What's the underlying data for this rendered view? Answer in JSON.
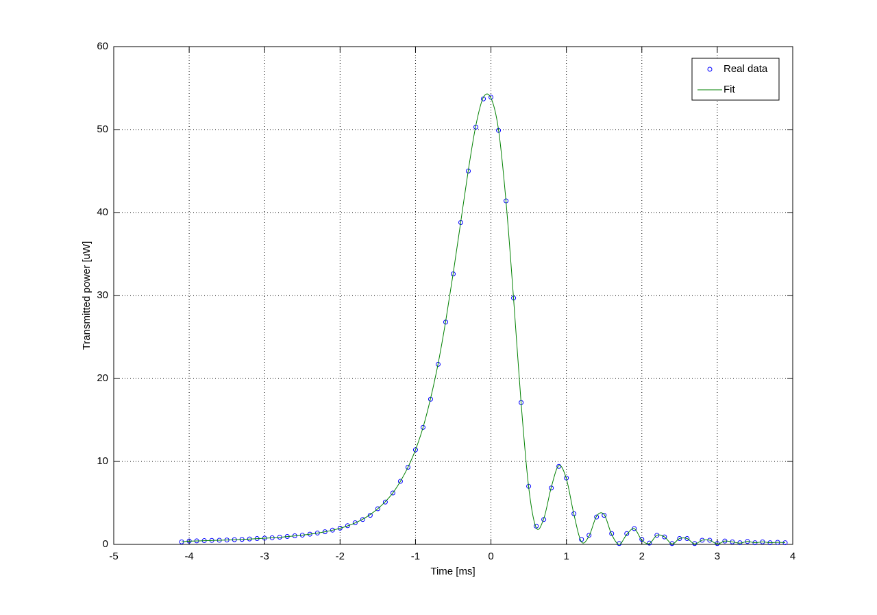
{
  "chart_data": {
    "type": "line",
    "xlabel": "Time [ms]",
    "ylabel": "Transmitted power [uW]",
    "x": [
      -4.1,
      -4.0,
      -3.9,
      -3.8,
      -3.7,
      -3.6,
      -3.5,
      -3.4,
      -3.3,
      -3.2,
      -3.1,
      -3.0,
      -2.9,
      -2.8,
      -2.7,
      -2.6,
      -2.5,
      -2.4,
      -2.3,
      -2.2,
      -2.1,
      -2.0,
      -1.9,
      -1.8,
      -1.7,
      -1.6,
      -1.5,
      -1.4,
      -1.3,
      -1.2,
      -1.1,
      -1.0,
      -0.9,
      -0.8,
      -0.7,
      -0.6,
      -0.5,
      -0.4,
      -0.3,
      -0.2,
      -0.1,
      0.0,
      0.1,
      0.2,
      0.3,
      0.4,
      0.5,
      0.6,
      0.7,
      0.8,
      0.9,
      1.0,
      1.1,
      1.2,
      1.3,
      1.4,
      1.5,
      1.6,
      1.7,
      1.8,
      1.9,
      2.0,
      2.1,
      2.2,
      2.3,
      2.4,
      2.5,
      2.6,
      2.7,
      2.8,
      2.9,
      3.0,
      3.1,
      3.2,
      3.3,
      3.4,
      3.5,
      3.6,
      3.7,
      3.8,
      3.9
    ],
    "series": [
      {
        "name": "Real data",
        "color": "#0000ff",
        "marker": "circle",
        "values": [
          0.3,
          0.4,
          0.42,
          0.45,
          0.48,
          0.5,
          0.53,
          0.57,
          0.6,
          0.65,
          0.7,
          0.75,
          0.8,
          0.87,
          0.95,
          1.03,
          1.12,
          1.23,
          1.37,
          1.52,
          1.72,
          1.95,
          2.25,
          2.6,
          3.0,
          3.5,
          4.3,
          5.1,
          6.2,
          7.6,
          9.3,
          11.4,
          14.1,
          17.5,
          21.7,
          26.8,
          32.6,
          38.8,
          45.0,
          50.3,
          53.7,
          53.9,
          49.9,
          41.4,
          29.7,
          17.1,
          7.0,
          2.2,
          3.0,
          6.8,
          9.4,
          8.0,
          3.7,
          0.6,
          1.1,
          3.3,
          3.5,
          1.3,
          0.1,
          1.3,
          1.9,
          0.6,
          0.15,
          1.1,
          0.9,
          0.1,
          0.7,
          0.7,
          0.1,
          0.5,
          0.5,
          0.1,
          0.4,
          0.3,
          0.2,
          0.35,
          0.2,
          0.3,
          0.2,
          0.25,
          0.2
        ]
      },
      {
        "name": "Fit",
        "color": "#008000",
        "marker": "none",
        "values": [
          0.3,
          0.38,
          0.41,
          0.44,
          0.47,
          0.5,
          0.53,
          0.56,
          0.6,
          0.64,
          0.69,
          0.74,
          0.8,
          0.86,
          0.94,
          1.02,
          1.12,
          1.23,
          1.36,
          1.52,
          1.71,
          1.94,
          2.23,
          2.59,
          3.03,
          3.6,
          4.3,
          5.15,
          6.2,
          7.6,
          9.3,
          11.4,
          14.1,
          17.6,
          21.8,
          26.9,
          32.7,
          38.9,
          45.1,
          50.5,
          53.9,
          53.8,
          50.0,
          41.3,
          29.6,
          17.0,
          6.9,
          2.0,
          3.1,
          6.9,
          9.5,
          7.9,
          3.6,
          0.3,
          1.0,
          3.4,
          3.6,
          1.2,
          0.0,
          1.2,
          1.9,
          0.5,
          0.1,
          1.1,
          0.9,
          0.05,
          0.7,
          0.7,
          0.05,
          0.5,
          0.5,
          0.05,
          0.4,
          0.3,
          0.15,
          0.35,
          0.2,
          0.3,
          0.2,
          0.25,
          0.2
        ]
      }
    ],
    "xlim": [
      -5,
      4
    ],
    "xticks": [
      -5,
      -4,
      -3,
      -2,
      -1,
      0,
      1,
      2,
      3,
      4
    ],
    "ylim": [
      0,
      60
    ],
    "yticks": [
      0,
      10,
      20,
      30,
      40,
      50,
      60
    ],
    "grid": true,
    "legend": "northeast"
  }
}
